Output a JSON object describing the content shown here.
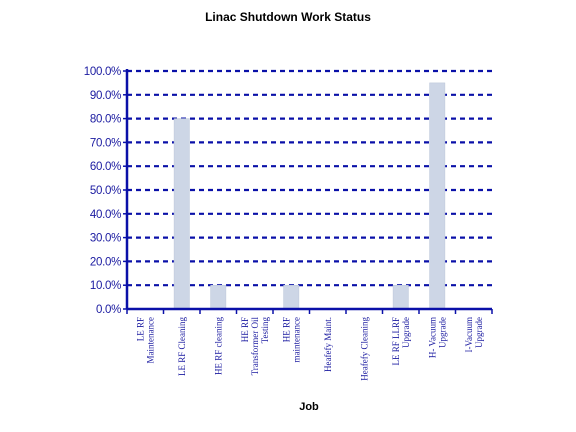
{
  "chart_data": {
    "type": "bar",
    "title": "Linac Shutdown Work Status",
    "xlabel": "Job",
    "ylabel": "",
    "ylim": [
      0,
      1
    ],
    "yticks": [
      "0.0%",
      "10.0%",
      "20.0%",
      "30.0%",
      "40.0%",
      "50.0%",
      "60.0%",
      "70.0%",
      "80.0%",
      "90.0%",
      "100.0%"
    ],
    "categories": [
      [
        "LE RF",
        "Maintenance"
      ],
      [
        "LE RF Cleaning"
      ],
      [
        "HE RF cleaning"
      ],
      [
        "HE RF",
        "Transformer Oil",
        "Testing"
      ],
      [
        "HE RF",
        "maintenance"
      ],
      [
        "Heafefy Maint."
      ],
      [
        "Heafefy Cleaning"
      ],
      [
        "LE RF LLRF",
        "Upgrade"
      ],
      [
        "H- Vacuum",
        "Upgrade"
      ],
      [
        "I-Vacuum",
        "Upgrade"
      ]
    ],
    "values": [
      0,
      0.8,
      0.1,
      0,
      0.1,
      0,
      0,
      0.1,
      0.95,
      0
    ],
    "grid": true,
    "colors": {
      "bar": "#cdd6e6",
      "bar_edge": "#b9c4d8",
      "grid": "#0a10a8",
      "axis": "#0a10a8",
      "tick_text": "#1a1aa0"
    }
  }
}
